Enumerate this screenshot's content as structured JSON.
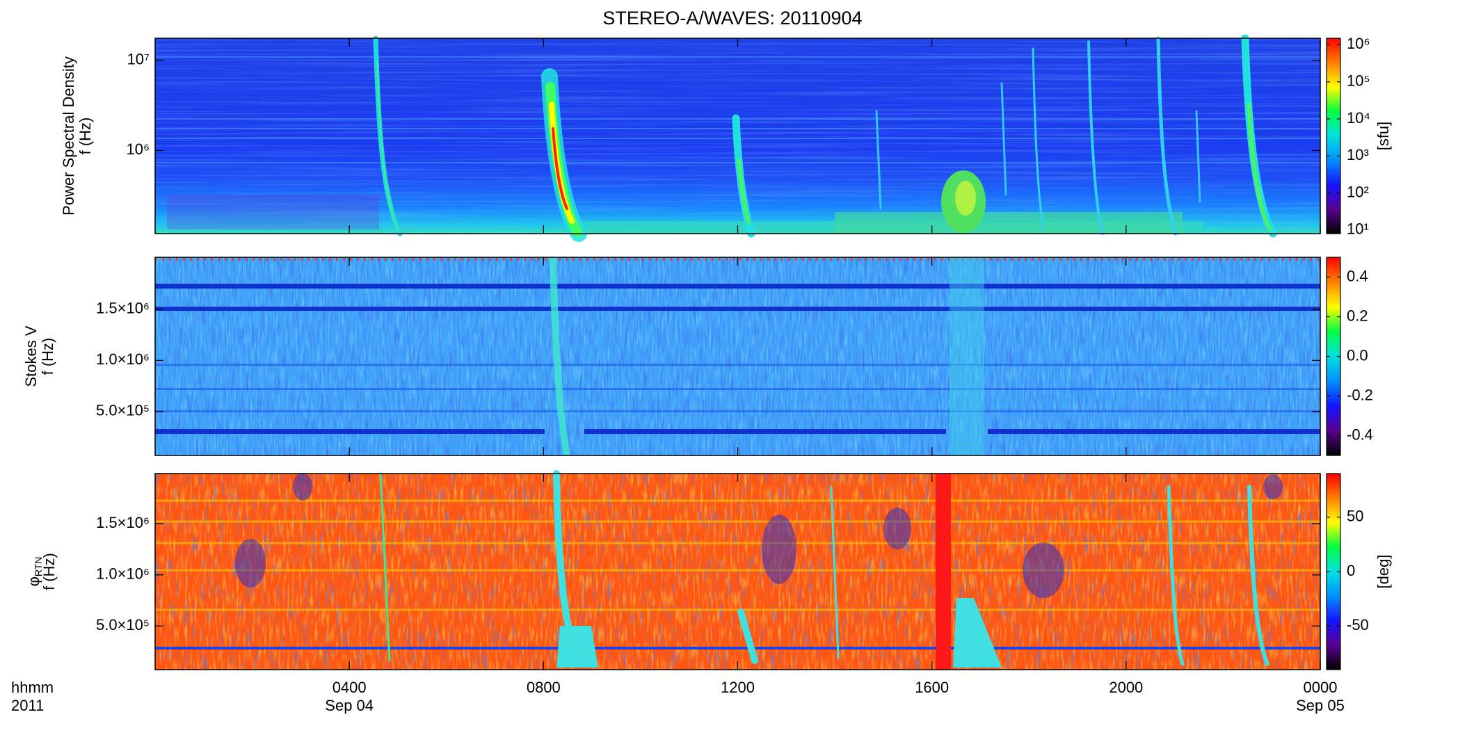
{
  "figure": {
    "title": "STEREO-A/WAVES: 20110904",
    "xlim": [
      0,
      24
    ],
    "xticks": [
      {
        "value": 4,
        "label": "0400"
      },
      {
        "value": 8,
        "label": "0800"
      },
      {
        "value": 12,
        "label": "1200"
      },
      {
        "value": 16,
        "label": "1600"
      },
      {
        "value": 20,
        "label": "2000"
      },
      {
        "value": 24,
        "label": "0000"
      }
    ],
    "date_ticks": [
      {
        "value": 4,
        "label": "Sep 04"
      },
      {
        "value": 24,
        "label": "Sep 05"
      }
    ],
    "xlabel": "hhmm",
    "year": "2011"
  },
  "chart_data": [
    {
      "type": "spectrogram",
      "ylabel": [
        "Power Spectral Density",
        "f (Hz)"
      ],
      "ylog": true,
      "ylim": [
        120000,
        17500000
      ],
      "yticks": [
        {
          "value": 1000000,
          "label": "10⁶"
        },
        {
          "value": 10000000,
          "label": "10⁷"
        }
      ],
      "clog": true,
      "clim": [
        8,
        1500000
      ],
      "cticks": [
        {
          "value": 10,
          "label": "10¹"
        },
        {
          "value": 100,
          "label": "10²"
        },
        {
          "value": 1000,
          "label": "10³"
        },
        {
          "value": 10000,
          "label": "10⁴"
        },
        {
          "value": 100000,
          "label": "10⁵"
        },
        {
          "value": 1000000,
          "label": "10⁶"
        }
      ],
      "clabel": "[sfu]",
      "colormap": [
        "#000000",
        "#5a0090",
        "#1414ff",
        "#0090ff",
        "#00e0e0",
        "#00ff40",
        "#ffff00",
        "#ff8000",
        "#ff0000"
      ]
    },
    {
      "type": "spectrogram",
      "ylabel": [
        "Stokes V",
        "f (Hz)"
      ],
      "ylog": false,
      "ylim": [
        70000,
        2010000
      ],
      "yticks": [
        {
          "value": 500000,
          "label": "5.0×10⁵"
        },
        {
          "value": 1000000,
          "label": "1.0×10⁶"
        },
        {
          "value": 1500000,
          "label": "1.5×10⁶"
        }
      ],
      "clog": false,
      "clim": [
        -0.5,
        0.5
      ],
      "cticks": [
        -0.4,
        -0.2,
        {
          "value": 0,
          "label": "0.0"
        },
        0.2,
        0.4
      ],
      "colormap": [
        "#000000",
        "#5a0090",
        "#1414ff",
        "#0090ff",
        "#00e0e0",
        "#00ff40",
        "#ffff00",
        "#ff8000",
        "#ff0000"
      ]
    },
    {
      "type": "spectrogram",
      "ylabel": [
        "φ",
        "f (Hz)"
      ],
      "ylabel_sub": "RTN",
      "ylog": false,
      "ylim": [
        74000,
        1990000
      ],
      "yticks": [
        {
          "value": 500000,
          "label": "5.0×10⁵"
        },
        {
          "value": 1000000,
          "label": "1.0×10⁶"
        },
        {
          "value": 1500000,
          "label": "1.5×10⁶"
        }
      ],
      "clog": false,
      "clim": [
        -90,
        90
      ],
      "cticks": [
        -50,
        0,
        50
      ],
      "clabel": "[deg]",
      "colormap": [
        "#000000",
        "#5a0090",
        "#1414ff",
        "#0090ff",
        "#00e0e0",
        "#00ff40",
        "#ffff00",
        "#ff8000",
        "#ff0000"
      ]
    }
  ]
}
